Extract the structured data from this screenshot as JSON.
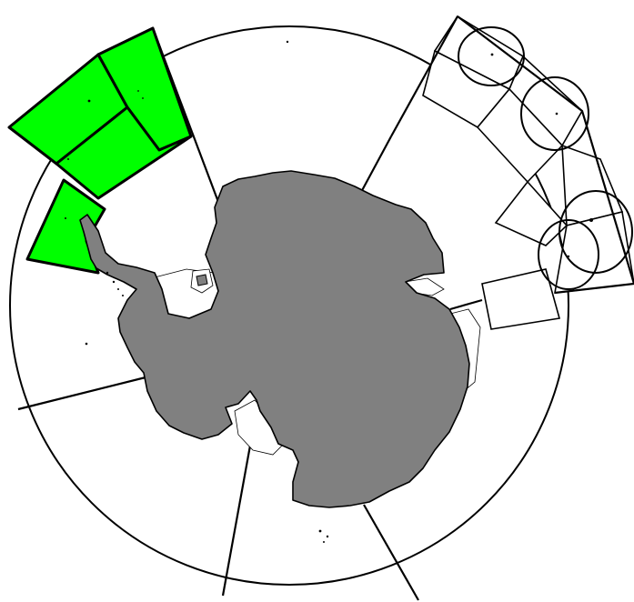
{
  "map": {
    "kind": "polar-stereographic-antarctica",
    "colors": {
      "background": "#ffffff",
      "outline": "#000000",
      "land": "#808080",
      "highlight": "#00ff00"
    },
    "regions": [
      {
        "id": "antarctic-peninsula-west",
        "highlighted": true
      },
      {
        "id": "bellingshausen-sea-north",
        "highlighted": true
      },
      {
        "id": "drake-passage-west",
        "highlighted": true
      },
      {
        "id": "drake-passage-east",
        "highlighted": true
      },
      {
        "id": "weddell-sea",
        "highlighted": false
      },
      {
        "id": "lazarev-sea",
        "highlighted": false
      },
      {
        "id": "amery-sector",
        "highlighted": false
      },
      {
        "id": "ross-sea",
        "highlighted": false
      },
      {
        "id": "amundsen-sea",
        "highlighted": false
      },
      {
        "id": "sub-antarctic-islands",
        "highlighted": false
      }
    ]
  }
}
